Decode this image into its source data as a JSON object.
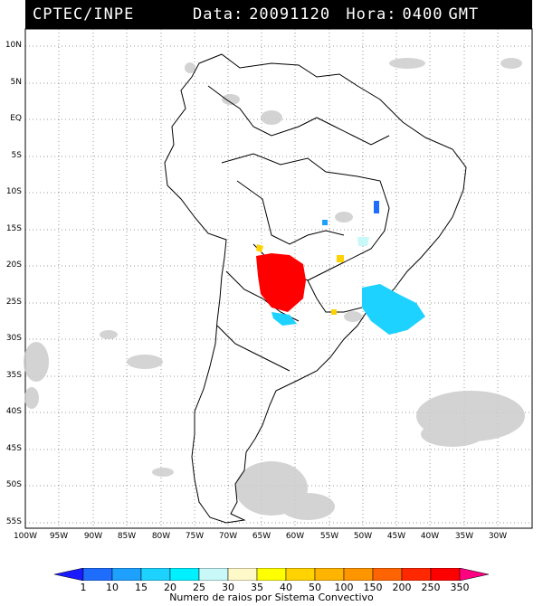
{
  "header": {
    "org": "CPTEC/INPE",
    "date_label": "Data:",
    "date_value": "20091120",
    "hour_label": "Hora:",
    "hour_value": "0400",
    "tz": "GMT"
  },
  "lat_labels": [
    "10N",
    "5N",
    "EQ",
    "5S",
    "10S",
    "15S",
    "20S",
    "25S",
    "30S",
    "35S",
    "40S",
    "45S",
    "50S",
    "55S"
  ],
  "lon_labels": [
    "100W",
    "95W",
    "90W",
    "85W",
    "80W",
    "75W",
    "70W",
    "65W",
    "60W",
    "55W",
    "50W",
    "45W",
    "40W",
    "35W",
    "30W"
  ],
  "legend": {
    "title": "Numero de raios por Sistema Convectivo",
    "labels": [
      "1",
      "10",
      "15",
      "20",
      "25",
      "30",
      "35",
      "40",
      "50",
      "100",
      "150",
      "200",
      "250",
      "350"
    ],
    "colors": [
      "#1a1aff",
      "#1e6dff",
      "#1ea0ff",
      "#1ed2ff",
      "#00f0ff",
      "#c8f8f8",
      "#fff8c8",
      "#ffff00",
      "#ffd200",
      "#ffb400",
      "#ff9600",
      "#ff6400",
      "#ff2800",
      "#ff0000",
      "#ff0080"
    ]
  },
  "colors": {
    "clouds": "#c8c8c8",
    "coast": "#000000",
    "header_bg": "#000000",
    "header_fg": "#ffffff"
  }
}
